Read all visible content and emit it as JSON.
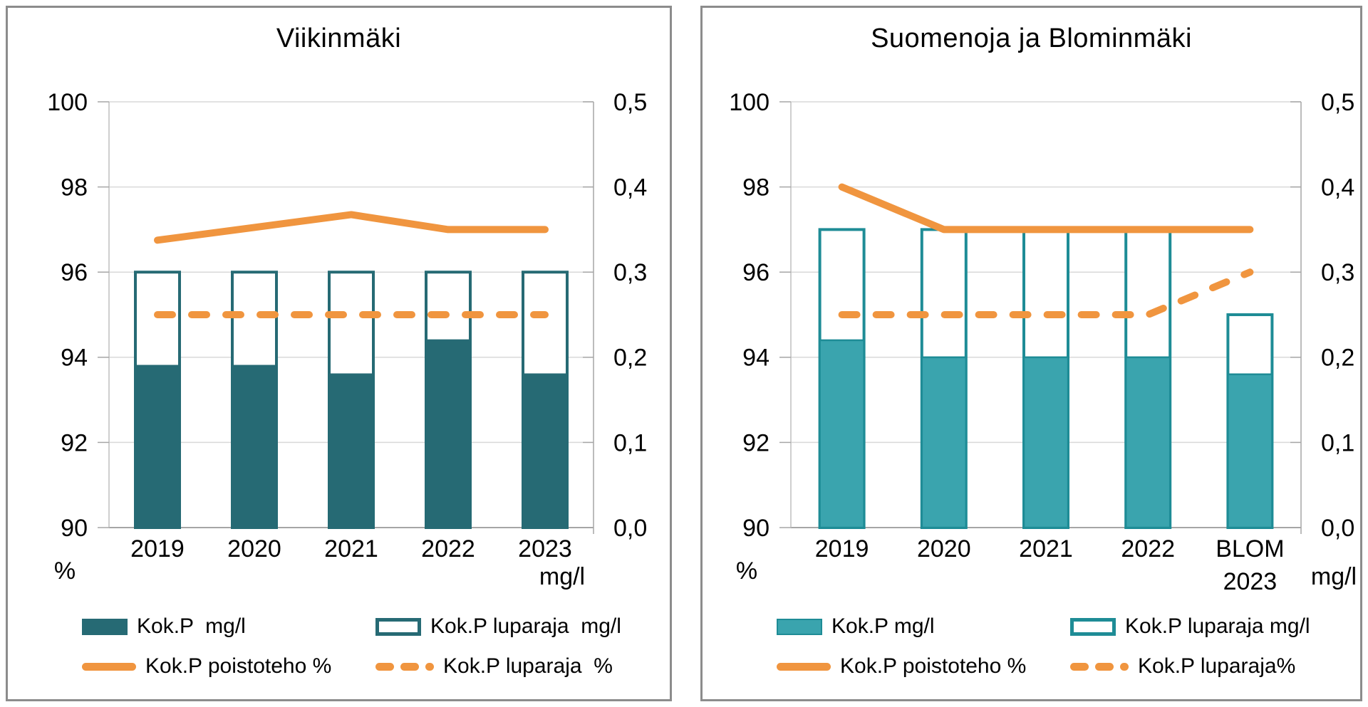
{
  "styles": {
    "background": "#FFFFFF",
    "panel_border": "#8C8C8C",
    "gridline_color": "#D9D9D9",
    "axis_line_color": "#A6A6A6",
    "left_axis_line_color": "#BFBFBF",
    "text_color": "#000000",
    "orange": "#F0953F"
  },
  "chart_data": [
    {
      "type": "combo-bar-line",
      "title": "Viikinmäki",
      "categories": [
        "2019",
        "2020",
        "2021",
        "2022",
        "2023"
      ],
      "left_axis": {
        "label": "%",
        "min": 90,
        "max": 100,
        "tick_values": [
          100,
          98,
          96,
          94,
          92,
          90
        ],
        "tick_labels": [
          "100",
          "98",
          "96",
          "94",
          "92",
          "90"
        ]
      },
      "right_axis": {
        "label": "mg/l",
        "min": 0,
        "max": 0.5,
        "tick_values": [
          0.5,
          0.4,
          0.3,
          0.2,
          0.1,
          0
        ],
        "tick_labels": [
          "0,5",
          "0,4",
          "0,3",
          "0,2",
          "0,1",
          "0,0"
        ]
      },
      "grid": true,
      "legend_position": "bottom",
      "series": [
        {
          "name": "Kok.P  mg/l",
          "type": "bar",
          "style": "filled",
          "axis": "right",
          "color": "#266A74",
          "border_color": "#266A74",
          "values": [
            0.19,
            0.19,
            0.18,
            0.22,
            0.18
          ]
        },
        {
          "name": "Kok.P luparaja  mg/l",
          "type": "bar",
          "style": "outline",
          "axis": "right",
          "color": "#FFFFFF",
          "border_color": "#266A74",
          "values": [
            0.3,
            0.3,
            0.3,
            0.3,
            0.3
          ]
        },
        {
          "name": "Kok.P poistoteho %",
          "type": "line",
          "style": "solid",
          "axis": "left",
          "color": "#F0953F",
          "values": [
            96.75,
            97.05,
            97.35,
            97.0,
            97.0
          ]
        },
        {
          "name": "Kok.P luparaja  %",
          "type": "line",
          "style": "dashed",
          "axis": "left",
          "color": "#F0953F",
          "values": [
            95,
            95,
            95,
            95,
            95
          ]
        }
      ]
    },
    {
      "type": "combo-bar-line",
      "title": "Suomenoja ja Blominmäki",
      "categories": [
        "2019",
        "2020",
        "2021",
        "2022",
        "BLOM\n2023"
      ],
      "left_axis": {
        "label": "%",
        "min": 90,
        "max": 100,
        "tick_values": [
          100,
          98,
          96,
          94,
          92,
          90
        ],
        "tick_labels": [
          "100",
          "98",
          "96",
          "94",
          "92",
          "90"
        ]
      },
      "right_axis": {
        "label": "mg/l",
        "min": 0,
        "max": 0.5,
        "tick_values": [
          0.5,
          0.4,
          0.3,
          0.2,
          0.1,
          0
        ],
        "tick_labels": [
          "0,5",
          "0,4",
          "0,3",
          "0,2",
          "0,1",
          "0,0"
        ]
      },
      "grid": true,
      "legend_position": "bottom",
      "series": [
        {
          "name": "Kok.P mg/l",
          "type": "bar",
          "style": "filled",
          "axis": "right",
          "color": "#3AA4AE",
          "border_color": "#1E8C96",
          "values": [
            0.22,
            0.2,
            0.2,
            0.2,
            0.18
          ]
        },
        {
          "name": "Kok.P luparaja mg/l",
          "type": "bar",
          "style": "outline",
          "axis": "right",
          "color": "#FFFFFF",
          "border_color": "#1E8C96",
          "values": [
            0.35,
            0.35,
            0.35,
            0.35,
            0.25
          ]
        },
        {
          "name": "Kok.P poistoteho %",
          "type": "line",
          "style": "solid",
          "axis": "left",
          "color": "#F0953F",
          "values": [
            98.0,
            97.0,
            97.0,
            97.0,
            97.0
          ]
        },
        {
          "name": "Kok.P luparaja%",
          "type": "line",
          "style": "dashed",
          "axis": "left",
          "color": "#F0953F",
          "values": [
            95,
            95,
            95,
            95,
            96
          ]
        }
      ]
    }
  ]
}
